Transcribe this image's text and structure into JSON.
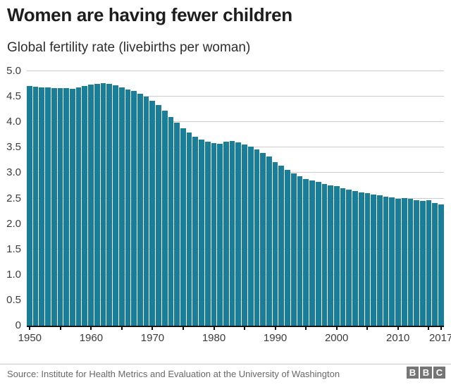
{
  "header": {
    "title": "Women are having fewer children",
    "subtitle": "Global fertility rate (livebirths per woman)"
  },
  "chart_data": {
    "type": "bar",
    "title": "Women are having fewer children",
    "subtitle": "Global fertility rate (livebirths per woman)",
    "xlabel": "",
    "ylabel": "livebirths per woman",
    "ylim": [
      0,
      5.0
    ],
    "grid": "horizontal-only",
    "legend": "none",
    "x": [
      1950,
      1951,
      1952,
      1953,
      1954,
      1955,
      1956,
      1957,
      1958,
      1959,
      1960,
      1961,
      1962,
      1963,
      1964,
      1965,
      1966,
      1967,
      1968,
      1969,
      1970,
      1971,
      1972,
      1973,
      1974,
      1975,
      1976,
      1977,
      1978,
      1979,
      1980,
      1981,
      1982,
      1983,
      1984,
      1985,
      1986,
      1987,
      1988,
      1989,
      1990,
      1991,
      1992,
      1993,
      1994,
      1995,
      1996,
      1997,
      1998,
      1999,
      2000,
      2001,
      2002,
      2003,
      2004,
      2005,
      2006,
      2007,
      2008,
      2009,
      2010,
      2011,
      2012,
      2013,
      2014,
      2015,
      2016,
      2017
    ],
    "values": [
      4.71,
      4.69,
      4.68,
      4.68,
      4.67,
      4.67,
      4.67,
      4.66,
      4.68,
      4.71,
      4.74,
      4.75,
      4.76,
      4.75,
      4.73,
      4.68,
      4.64,
      4.61,
      4.56,
      4.5,
      4.42,
      4.33,
      4.22,
      4.1,
      3.99,
      3.88,
      3.79,
      3.71,
      3.65,
      3.61,
      3.59,
      3.58,
      3.62,
      3.63,
      3.6,
      3.56,
      3.52,
      3.46,
      3.39,
      3.32,
      3.22,
      3.14,
      3.06,
      2.99,
      2.93,
      2.88,
      2.85,
      2.82,
      2.79,
      2.76,
      2.74,
      2.7,
      2.67,
      2.65,
      2.62,
      2.6,
      2.58,
      2.56,
      2.54,
      2.52,
      2.5,
      2.51,
      2.5,
      2.46,
      2.45,
      2.46,
      2.41,
      2.38
    ],
    "y_ticks": [
      {
        "label": "5.0",
        "value": 5.0
      },
      {
        "label": "4.5",
        "value": 4.5
      },
      {
        "label": "4.0",
        "value": 4.0
      },
      {
        "label": "3.5",
        "value": 3.5
      },
      {
        "label": "3.0",
        "value": 3.0
      },
      {
        "label": "2.5",
        "value": 2.5
      },
      {
        "label": "2.0",
        "value": 2.0
      },
      {
        "label": "1.5",
        "value": 1.5
      },
      {
        "label": "1.0",
        "value": 1.0
      },
      {
        "label": "0.5",
        "value": 0.5
      },
      {
        "label": "0",
        "value": 0
      }
    ],
    "x_tick_labels": [
      {
        "label": "1950",
        "year": 1950
      },
      {
        "label": "1960",
        "year": 1960
      },
      {
        "label": "1970",
        "year": 1970
      },
      {
        "label": "1980",
        "year": 1980
      },
      {
        "label": "1990",
        "year": 1990
      },
      {
        "label": "2000",
        "year": 2000
      },
      {
        "label": "2010",
        "year": 2010
      },
      {
        "label": "2017",
        "year": 2017
      }
    ],
    "x_minor_tick_years": [
      1950,
      1955,
      1960,
      1965,
      1970,
      1975,
      1980,
      1985,
      1990,
      1995,
      2000,
      2005,
      2010,
      2015,
      2017
    ],
    "colors": {
      "bar": "#1b7e98",
      "grid": "#cccccc",
      "axis": "#111111",
      "tick_text": "#3c3c3c"
    }
  },
  "footer": {
    "source": "Source: Institute for Health Metrics and Evaluation at the University of Washington",
    "logo_letters": [
      "B",
      "B",
      "C"
    ],
    "logo_color": "#757575"
  }
}
